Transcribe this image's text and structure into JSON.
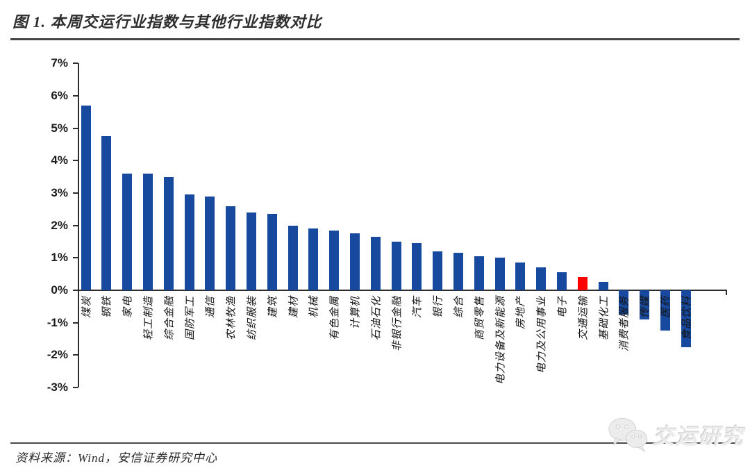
{
  "figure": {
    "title": "图 1. 本周交运行业指数与其他行业指数对比",
    "source_note": "资料来源：Wind，安信证券研究中心",
    "watermark": {
      "icon": "wechat-icon",
      "text": "交运研究"
    }
  },
  "chart_data": {
    "type": "bar",
    "title": "本周交运行业指数与其他行业指数对比",
    "categories": [
      "煤炭",
      "钢铁",
      "家电",
      "轻工制造",
      "综合金融",
      "国防军工",
      "通信",
      "农林牧渔",
      "纺织服装",
      "建筑",
      "建材",
      "机械",
      "有色金属",
      "计算机",
      "石油石化",
      "非银行金融",
      "汽车",
      "银行",
      "综合",
      "商贸零售",
      "电力设备及新能源",
      "房地产",
      "电力及公用事业",
      "电子",
      "交通运输",
      "基础化工",
      "消费者服务",
      "传媒",
      "医药",
      "食品饮料"
    ],
    "values": [
      5.7,
      4.75,
      3.6,
      3.6,
      3.5,
      2.95,
      2.9,
      2.6,
      2.4,
      2.35,
      2.0,
      1.9,
      1.85,
      1.75,
      1.65,
      1.5,
      1.45,
      1.2,
      1.15,
      1.05,
      1.0,
      0.85,
      0.7,
      0.55,
      0.4,
      0.25,
      -0.75,
      -0.9,
      -1.25,
      -1.75
    ],
    "unit": "%",
    "xlabel": "",
    "ylabel": "",
    "ylim": [
      -3,
      7
    ],
    "ytick_labels": [
      "7%",
      "6%",
      "5%",
      "4%",
      "3%",
      "2%",
      "1%",
      "0%",
      "-1%",
      "-2%",
      "-3%"
    ],
    "grid": false,
    "legend": "none",
    "bar_color": "#17499E",
    "highlight_category": "交通运输",
    "highlight_color": "#FF0000"
  }
}
